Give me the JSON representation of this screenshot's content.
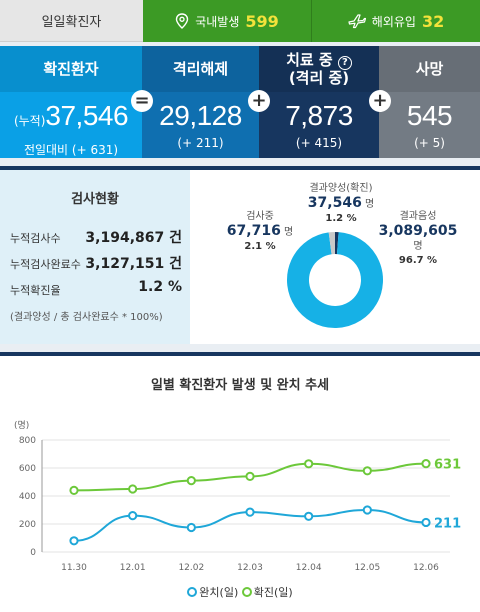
{
  "top": {
    "label": "일일확진자",
    "domestic_label": "국내발생",
    "domestic_value": "599",
    "overseas_label": "해외유입",
    "overseas_value": "32"
  },
  "stats": {
    "confirmed": {
      "title": "확진환자",
      "prefix": "(누적)",
      "value": "37,546",
      "sub": "전일대비 (+ 631)"
    },
    "released": {
      "title": "격리해제",
      "value": "29,128",
      "sub": "(+ 211)"
    },
    "treating": {
      "title": "치료 중",
      "title2": "(격리 중)",
      "help": "?",
      "value": "7,873",
      "sub": "(+ 415)"
    },
    "deaths": {
      "title": "사망",
      "value": "545",
      "sub": "(+ 5)"
    },
    "op_equals": "=",
    "op_plus": "+"
  },
  "tests": {
    "title": "검사현황",
    "rows": [
      {
        "key": "누적검사수",
        "value": "3,194,867 건"
      },
      {
        "key": "누적검사완료수",
        "value": "3,127,151 건"
      },
      {
        "key": "누적확진율",
        "value": "1.2 %"
      }
    ],
    "note": "(결과양성 / 총 검사완료수 * 100%)",
    "pie": {
      "testing": {
        "label": "검사중",
        "value": "67,716",
        "unit": "명",
        "pct": "2.1 %"
      },
      "positive": {
        "label": "결과양성(확진)",
        "value": "37,546",
        "unit": "명",
        "pct": "1.2 %"
      },
      "negative": {
        "label": "결과음성",
        "value": "3,089,605",
        "unit": "명",
        "pct": "96.7 %"
      }
    },
    "colors": {
      "negative": "#16b1e6",
      "testing": "#c9c9c9",
      "positive": "#17365f"
    }
  },
  "chart_title": "일별 확진환자 발생 및 완치 추세",
  "chart_data": {
    "type": "line",
    "ylabel": "(명)",
    "ylim": [
      0,
      800
    ],
    "yticks": [
      0,
      200,
      400,
      600,
      800
    ],
    "categories": [
      "11.30",
      "12.01",
      "12.02",
      "12.03",
      "12.04",
      "12.05",
      "12.06"
    ],
    "series": [
      {
        "name": "완치(일)",
        "color": "#1fa7d8",
        "values": [
          80,
          260,
          175,
          285,
          255,
          300,
          211
        ]
      },
      {
        "name": "확진(일)",
        "color": "#6cc83a",
        "values": [
          440,
          450,
          510,
          540,
          630,
          580,
          631
        ]
      }
    ],
    "end_labels": [
      "211",
      "631"
    ],
    "grid": true,
    "legend": "bottom"
  }
}
